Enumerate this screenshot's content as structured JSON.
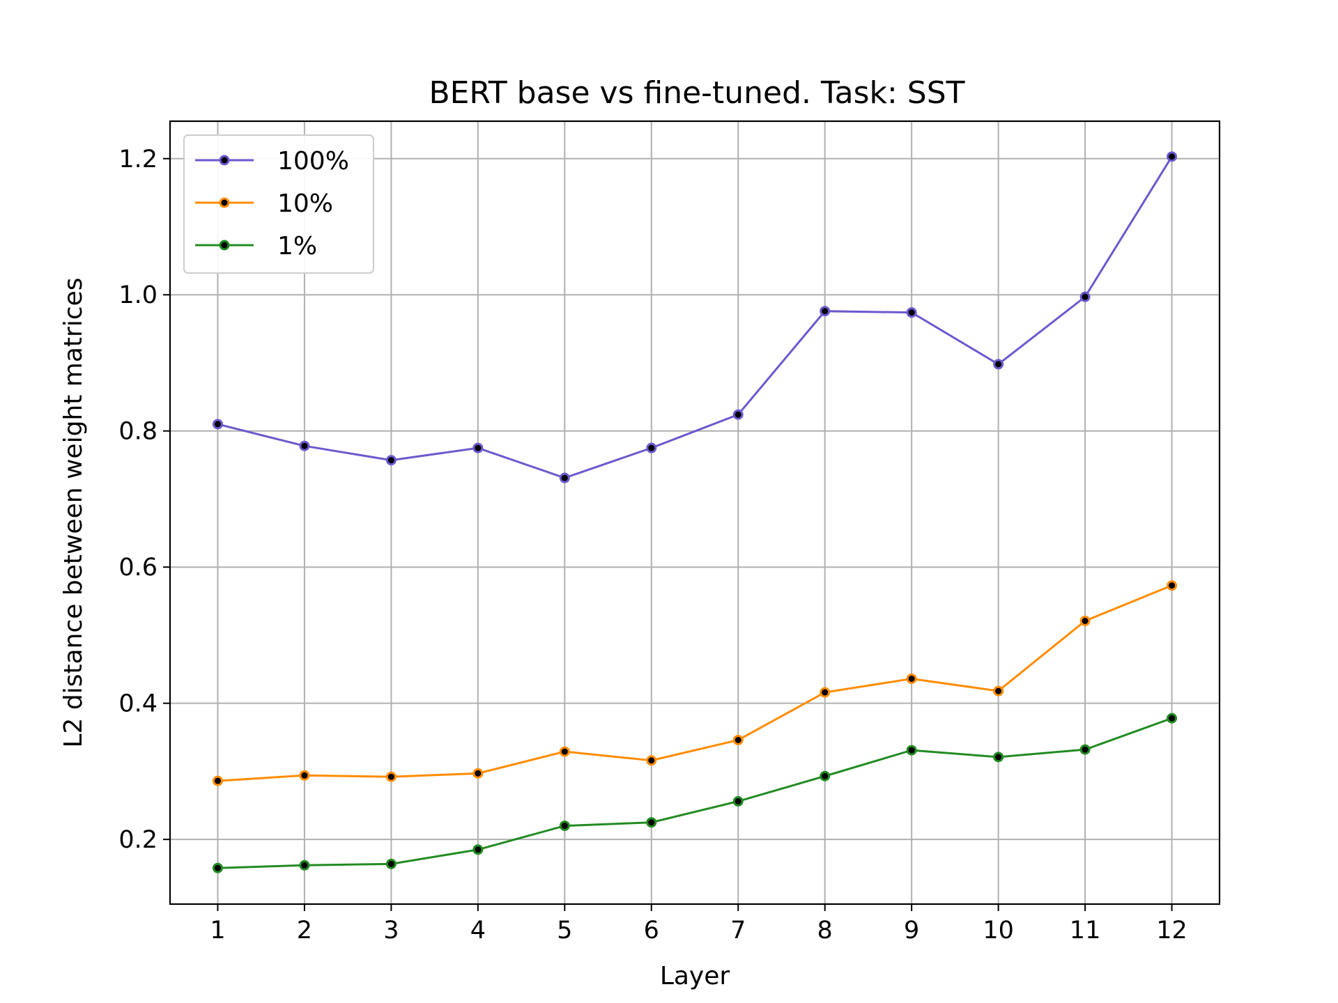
{
  "chart_data": {
    "type": "line",
    "title": "BERT base vs fine-tuned. Task: SST",
    "xlabel": "Layer",
    "ylabel": "L2 distance between weight matrices",
    "x": [
      1,
      2,
      3,
      4,
      5,
      6,
      7,
      8,
      9,
      10,
      11,
      12
    ],
    "x_ticks": [
      "1",
      "2",
      "3",
      "4",
      "5",
      "6",
      "7",
      "8",
      "9",
      "10",
      "11",
      "12"
    ],
    "xlim": [
      0.45,
      12.55
    ],
    "y_ticks": [
      0.2,
      0.4,
      0.6,
      0.8,
      1.0,
      1.2
    ],
    "y_tick_labels": [
      "0.2",
      "0.4",
      "0.6",
      "0.8",
      "1.0",
      "1.2"
    ],
    "ylim": [
      0.105,
      1.255
    ],
    "grid": true,
    "legend_position": "upper-left",
    "series": [
      {
        "name": "100%",
        "color": "#6a5acd",
        "values": [
          0.81,
          0.778,
          0.757,
          0.775,
          0.731,
          0.775,
          0.824,
          0.976,
          0.974,
          0.898,
          0.997,
          1.203
        ]
      },
      {
        "name": "10%",
        "color": "#ff8c00",
        "values": [
          0.286,
          0.294,
          0.292,
          0.297,
          0.329,
          0.316,
          0.346,
          0.416,
          0.436,
          0.418,
          0.521,
          0.573
        ]
      },
      {
        "name": "1%",
        "color": "#228b22",
        "values": [
          0.158,
          0.162,
          0.164,
          0.185,
          0.22,
          0.225,
          0.256,
          0.293,
          0.331,
          0.321,
          0.332,
          0.378
        ]
      }
    ]
  }
}
